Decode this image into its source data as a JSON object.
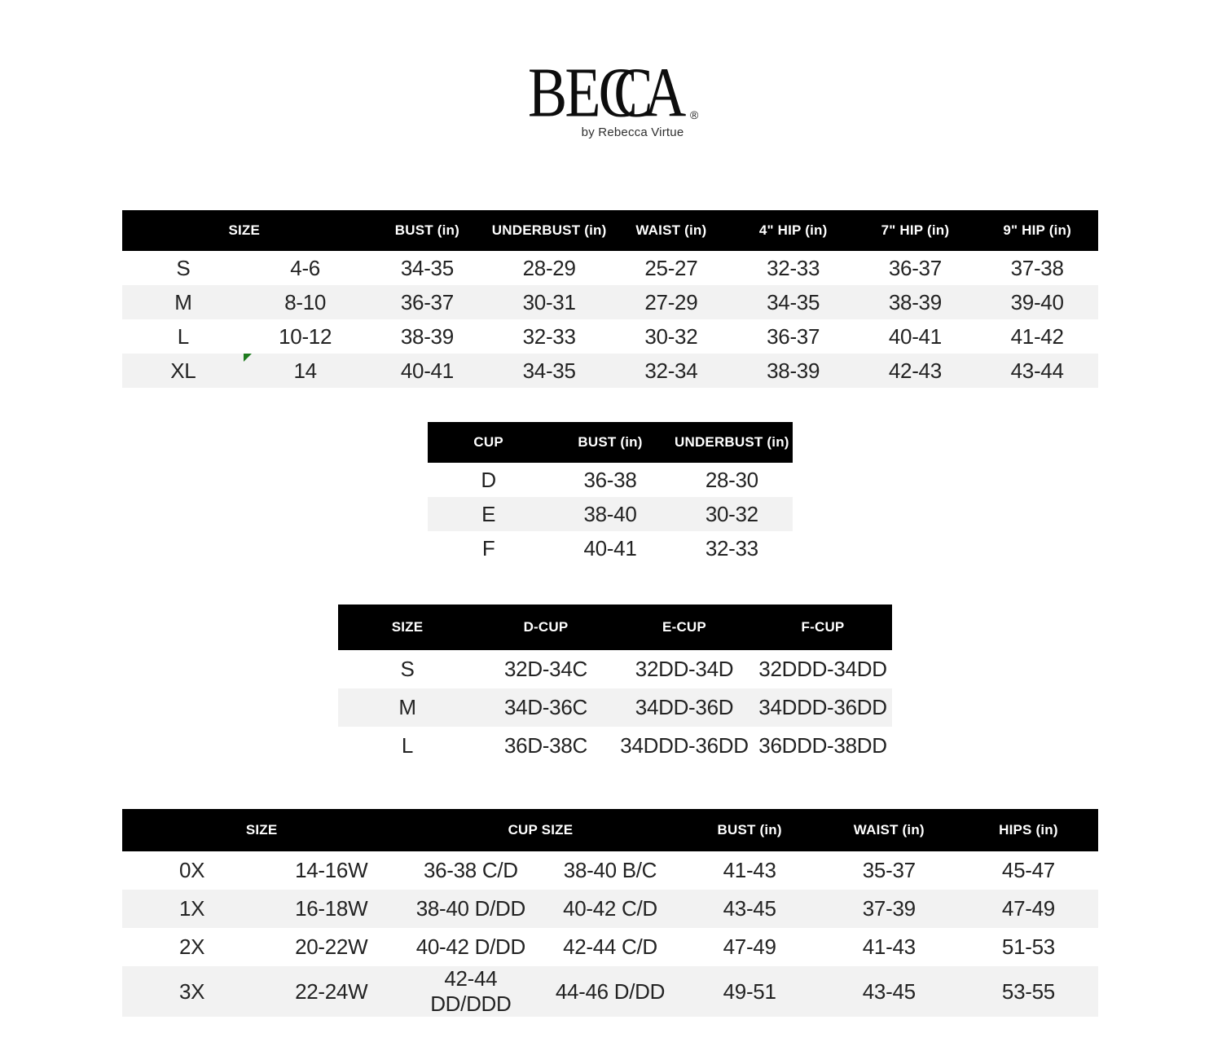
{
  "brand": {
    "letters": [
      "B",
      "E",
      "C",
      "C",
      "A"
    ],
    "logo_text": "BECCA",
    "registered_mark": "®",
    "tagline": "by Rebecca Virtue"
  },
  "colors": {
    "header_bg": "#000000",
    "header_text": "#ffffff",
    "row_stripe": "#f2f2f2",
    "body_text": "#232323",
    "marker_green": "#1e7b1e"
  },
  "tables": [
    {
      "name": "standard-sizes",
      "headers": [
        {
          "label": "SIZE",
          "span": 2
        },
        {
          "label": "BUST (in)"
        },
        {
          "label": "UNDERBUST (in)"
        },
        {
          "label": "WAIST (in)"
        },
        {
          "label": "4\" HIP (in)"
        },
        {
          "label": "7\" HIP (in)"
        },
        {
          "label": "9\" HIP (in)"
        }
      ],
      "rows": [
        [
          "S",
          "4-6",
          "34-35",
          "28-29",
          "25-27",
          "32-33",
          "36-37",
          "37-38"
        ],
        [
          "M",
          "8-10",
          "36-37",
          "30-31",
          "27-29",
          "34-35",
          "38-39",
          "39-40"
        ],
        [
          "L",
          "10-12",
          "38-39",
          "32-33",
          "30-32",
          "36-37",
          "40-41",
          "41-42"
        ],
        [
          "XL",
          "14",
          "40-41",
          "34-35",
          "32-34",
          "38-39",
          "42-43",
          "43-44"
        ]
      ]
    },
    {
      "name": "cup-measurements",
      "headers": [
        {
          "label": "CUP"
        },
        {
          "label": "BUST (in)"
        },
        {
          "label": "UNDERBUST (in)"
        }
      ],
      "rows": [
        [
          "D",
          "36-38",
          "28-30"
        ],
        [
          "E",
          "38-40",
          "30-32"
        ],
        [
          "F",
          "40-41",
          "32-33"
        ]
      ]
    },
    {
      "name": "cup-sizes",
      "headers": [
        {
          "label": "SIZE"
        },
        {
          "label": "D-CUP"
        },
        {
          "label": "E-CUP"
        },
        {
          "label": "F-CUP"
        }
      ],
      "rows": [
        [
          "S",
          "32D-34C",
          "32DD-34D",
          "32DDD-34DD"
        ],
        [
          "M",
          "34D-36C",
          "34DD-36D",
          "34DDD-36DD"
        ],
        [
          "L",
          "36D-38C",
          "34DDD-36DD",
          "36DDD-38DD"
        ]
      ]
    },
    {
      "name": "plus-sizes",
      "headers": [
        {
          "label": "SIZE",
          "span": 2
        },
        {
          "label": "CUP SIZE",
          "span": 2
        },
        {
          "label": "BUST (in)"
        },
        {
          "label": "WAIST (in)"
        },
        {
          "label": "HIPS (in)"
        }
      ],
      "rows": [
        [
          "0X",
          "14-16W",
          "36-38 C/D",
          "38-40 B/C",
          "41-43",
          "35-37",
          "45-47"
        ],
        [
          "1X",
          "16-18W",
          "38-40 D/DD",
          "40-42 C/D",
          "43-45",
          "37-39",
          "47-49"
        ],
        [
          "2X",
          "20-22W",
          "40-42 D/DD",
          "42-44 C/D",
          "47-49",
          "41-43",
          "51-53"
        ],
        [
          "3X",
          "22-24W",
          "42-44 DD/DDD",
          "44-46 D/DD",
          "49-51",
          "43-45",
          "53-55"
        ]
      ]
    }
  ]
}
